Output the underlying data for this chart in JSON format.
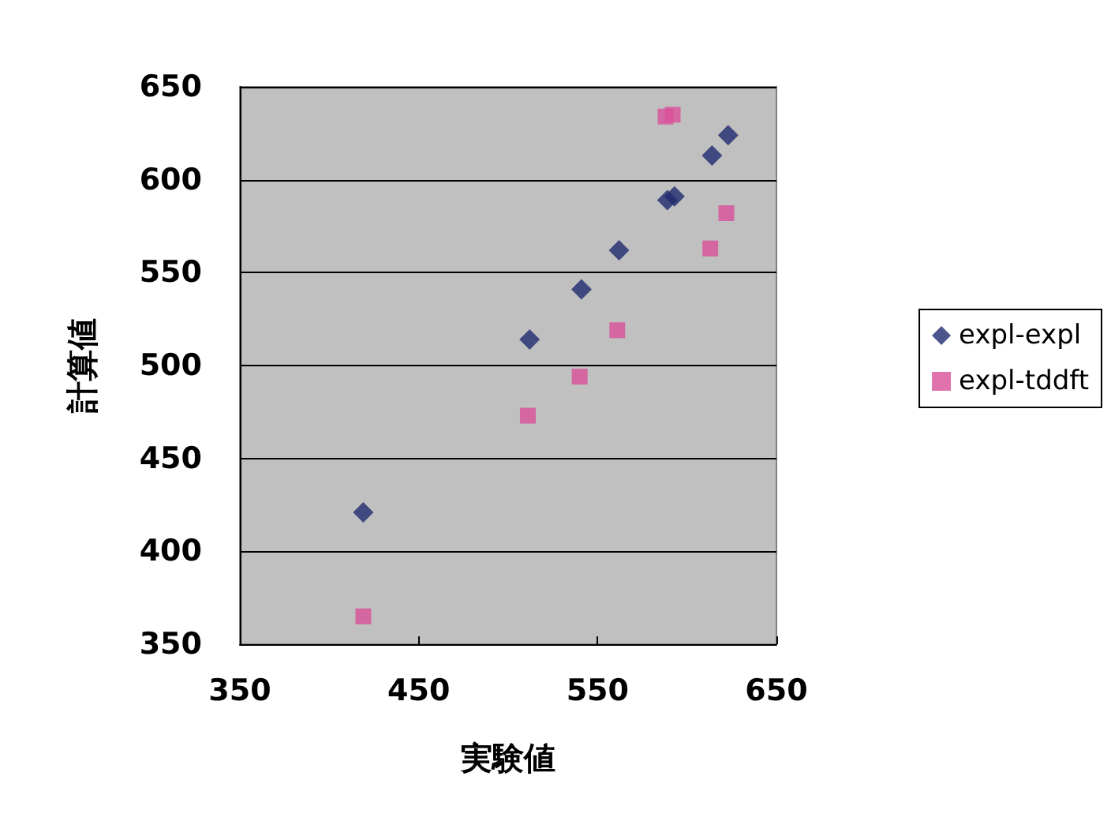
{
  "chart_data": {
    "type": "scatter",
    "xlabel": "実験値",
    "ylabel": "計算値",
    "xlim": [
      350,
      650
    ],
    "xticks": [
      350,
      450,
      550,
      650
    ],
    "ylim": [
      350,
      650
    ],
    "yticks": [
      350,
      400,
      450,
      500,
      550,
      600,
      650
    ],
    "grid": "y",
    "legend": "right",
    "series": [
      {
        "name": "expl-expl",
        "color": "#1f2a6e",
        "marker": "diamond",
        "x": [
          419,
          512,
          541,
          562,
          589,
          593,
          614,
          623
        ],
        "values": [
          421,
          514,
          541,
          562,
          589,
          591,
          613,
          624
        ]
      },
      {
        "name": "expl-tddft",
        "color": "#d8509a",
        "marker": "square",
        "x": [
          419,
          511,
          540,
          561,
          588,
          592,
          613,
          622
        ],
        "values": [
          365,
          473,
          494,
          519,
          634,
          635,
          563,
          582
        ]
      }
    ]
  }
}
